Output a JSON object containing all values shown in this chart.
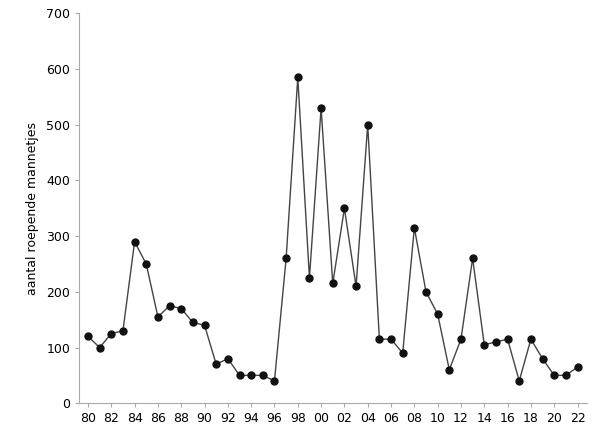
{
  "years": [
    1980,
    1981,
    1982,
    1983,
    1984,
    1985,
    1986,
    1987,
    1988,
    1989,
    1990,
    1991,
    1992,
    1993,
    1994,
    1995,
    1996,
    1997,
    1998,
    1999,
    2000,
    2001,
    2002,
    2003,
    2004,
    2005,
    2006,
    2007,
    2008,
    2009,
    2010,
    2011,
    2012,
    2013,
    2014,
    2015,
    2016,
    2017,
    2018,
    2019,
    2020,
    2021,
    2022
  ],
  "values": [
    120,
    100,
    125,
    130,
    290,
    250,
    155,
    175,
    170,
    145,
    140,
    70,
    80,
    50,
    50,
    50,
    40,
    260,
    585,
    225,
    530,
    215,
    350,
    210,
    500,
    115,
    115,
    90,
    315,
    200,
    160,
    60,
    115,
    260,
    105,
    110,
    115,
    40,
    115,
    80,
    50,
    50,
    65
  ],
  "ylabel": "aantal roepende mannetjes",
  "ylim": [
    0,
    700
  ],
  "yticks": [
    0,
    100,
    200,
    300,
    400,
    500,
    600,
    700
  ],
  "line_color": "#444444",
  "marker_color": "#111111",
  "marker_size": 5,
  "line_width": 1.0,
  "bg_color": "#ffffff",
  "spine_color": "#aaaaaa",
  "tick_label_fontsize": 9,
  "ylabel_fontsize": 9
}
